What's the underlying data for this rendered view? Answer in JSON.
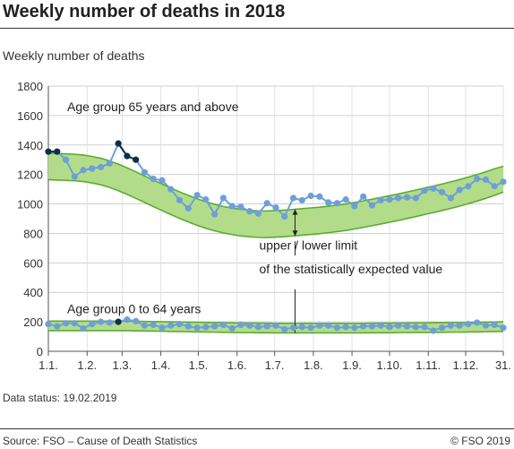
{
  "chart_data": {
    "type": "line",
    "title": "Weekly number of deaths in 2018",
    "ylabel": "Weekly number of deaths",
    "xlabel": "",
    "ylim": [
      0,
      1800
    ],
    "yticks": [
      0,
      200,
      400,
      600,
      800,
      1000,
      1200,
      1400,
      1600,
      1800
    ],
    "x_ticks": [
      "1.1.",
      "1.2.",
      "1.3.",
      "1.4.",
      "1.5.",
      "1.6.",
      "1.7.",
      "1.8.",
      "1.9.",
      "1.10.",
      "1.11.",
      "1.12.",
      "31."
    ],
    "x_tick_weeks": [
      1,
      5.43,
      9.43,
      13.86,
      18.14,
      22.57,
      26.86,
      31.29,
      35.71,
      40,
      44.43,
      48.71,
      53
    ],
    "grid": true,
    "legend": "none",
    "colors": {
      "band_fill": "#b3dc8a",
      "band_edge": "#5aac32",
      "line": "#6e9fd8",
      "marker": "#6e9fd8",
      "highlight_marker": "#0e2f4a"
    },
    "annotations": {
      "group_65": "Age group 65 years and above",
      "group_0_64": "Age group 0 to 64 years",
      "limits_line1": "upper / lower limit",
      "limits_line2": "of the statistically expected value"
    },
    "series": [
      {
        "name": "Age group 65 years and above",
        "weeks": [
          1,
          2,
          3,
          4,
          5,
          6,
          7,
          8,
          9,
          10,
          11,
          12,
          13,
          14,
          15,
          16,
          17,
          18,
          19,
          20,
          21,
          22,
          23,
          24,
          25,
          26,
          27,
          28,
          29,
          30,
          31,
          32,
          33,
          34,
          35,
          36,
          37,
          38,
          39,
          40,
          41,
          42,
          43,
          44,
          45,
          46,
          47,
          48,
          49,
          50,
          51,
          52,
          53
        ],
        "values": [
          1355,
          1355,
          1300,
          1185,
          1230,
          1240,
          1250,
          1275,
          1410,
          1325,
          1300,
          1215,
          1170,
          1160,
          1100,
          1025,
          970,
          1060,
          1030,
          930,
          1040,
          985,
          980,
          950,
          935,
          1005,
          975,
          915,
          1040,
          1025,
          1055,
          1050,
          1010,
          1005,
          1030,
          985,
          1050,
          990,
          1025,
          1030,
          1040,
          1045,
          1040,
          1090,
          1105,
          1080,
          1040,
          1095,
          1120,
          1170,
          1165,
          1120,
          1150
        ],
        "highlight_weeks": [
          1,
          2,
          9,
          10,
          11
        ],
        "expected_upper": [
          1345,
          1342,
          1340,
          1337,
          1332,
          1322,
          1310,
          1292,
          1270,
          1245,
          1218,
          1190,
          1162,
          1135,
          1108,
          1082,
          1058,
          1035,
          1015,
          998,
          983,
          972,
          963,
          957,
          953,
          952,
          955,
          958,
          963,
          968,
          973,
          978,
          985,
          992,
          1000,
          1010,
          1021,
          1032,
          1044,
          1056,
          1068,
          1081,
          1094,
          1108,
          1121,
          1135,
          1150,
          1165,
          1182,
          1199,
          1218,
          1238,
          1255
        ],
        "expected_lower": [
          1165,
          1162,
          1160,
          1157,
          1152,
          1142,
          1130,
          1112,
          1090,
          1065,
          1038,
          1010,
          982,
          955,
          928,
          902,
          878,
          855,
          835,
          818,
          803,
          792,
          783,
          777,
          773,
          772,
          775,
          778,
          783,
          788,
          793,
          798,
          805,
          812,
          820,
          830,
          841,
          852,
          864,
          876,
          888,
          901,
          914,
          928,
          941,
          955,
          970,
          985,
          1002,
          1019,
          1038,
          1058,
          1080
        ]
      },
      {
        "name": "Age group 0 to 64 years",
        "weeks": [
          1,
          2,
          3,
          4,
          5,
          6,
          7,
          8,
          9,
          10,
          11,
          12,
          13,
          14,
          15,
          16,
          17,
          18,
          19,
          20,
          21,
          22,
          23,
          24,
          25,
          26,
          27,
          28,
          29,
          30,
          31,
          32,
          33,
          34,
          35,
          36,
          37,
          38,
          39,
          40,
          41,
          42,
          43,
          44,
          45,
          46,
          47,
          48,
          49,
          50,
          51,
          52,
          53
        ],
        "values": [
          185,
          170,
          190,
          190,
          155,
          185,
          200,
          195,
          200,
          215,
          205,
          175,
          180,
          160,
          175,
          185,
          170,
          160,
          165,
          170,
          180,
          155,
          180,
          175,
          165,
          170,
          175,
          150,
          160,
          165,
          160,
          175,
          175,
          160,
          165,
          160,
          170,
          170,
          175,
          165,
          175,
          170,
          165,
          165,
          140,
          160,
          175,
          175,
          185,
          195,
          175,
          180,
          160
        ],
        "highlight_weeks": [
          9
        ],
        "expected_upper": [
          205,
          205,
          205,
          205,
          205,
          205,
          205,
          205,
          205,
          205,
          204,
          203,
          202,
          201,
          200,
          199,
          198,
          197,
          196,
          195,
          194,
          193,
          192,
          192,
          191,
          191,
          190,
          190,
          190,
          190,
          190,
          190,
          190,
          190,
          190,
          190,
          190,
          191,
          191,
          191,
          192,
          192,
          193,
          193,
          194,
          194,
          195,
          195,
          196,
          197,
          198,
          199,
          200
        ],
        "expected_lower": [
          140,
          140,
          140,
          140,
          140,
          140,
          140,
          140,
          140,
          140,
          139,
          138,
          137,
          136,
          135,
          134,
          133,
          132,
          131,
          130,
          129,
          128,
          127,
          127,
          126,
          126,
          125,
          125,
          125,
          125,
          125,
          125,
          125,
          125,
          125,
          125,
          125,
          126,
          126,
          126,
          127,
          127,
          128,
          128,
          129,
          129,
          130,
          130,
          131,
          132,
          133,
          134,
          135
        ]
      }
    ]
  },
  "footer": {
    "data_status": "Data status: 19.02.2019",
    "source": "Source: FSO – Cause of Death Statistics",
    "copyright": "© FSO 2019"
  }
}
